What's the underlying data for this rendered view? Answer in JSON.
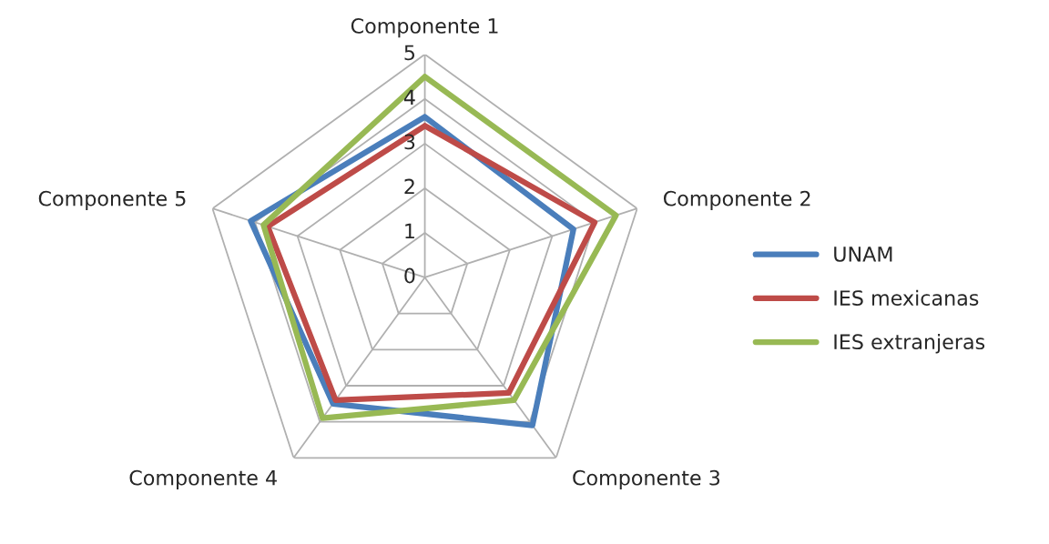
{
  "chart_data": {
    "type": "radar",
    "categories": [
      "Componente 1",
      "Componente 2",
      "Componente 3",
      "Componente 4",
      "Componente 5"
    ],
    "series": [
      {
        "name": "UNAM",
        "color": "#4a7ebb",
        "values": [
          3.6,
          3.5,
          4.1,
          3.5,
          4.1
        ]
      },
      {
        "name": "IES mexicanas",
        "color": "#be4b48",
        "values": [
          3.4,
          4.0,
          3.2,
          3.4,
          3.7
        ]
      },
      {
        "name": "IES extranjeras",
        "color": "#98b954",
        "values": [
          4.5,
          4.5,
          3.4,
          3.9,
          3.8
        ]
      }
    ],
    "ylim": [
      0,
      5
    ],
    "yticks": [
      0,
      1,
      2,
      3,
      4,
      5
    ],
    "grid": true,
    "legend": "right",
    "marker": "none"
  }
}
